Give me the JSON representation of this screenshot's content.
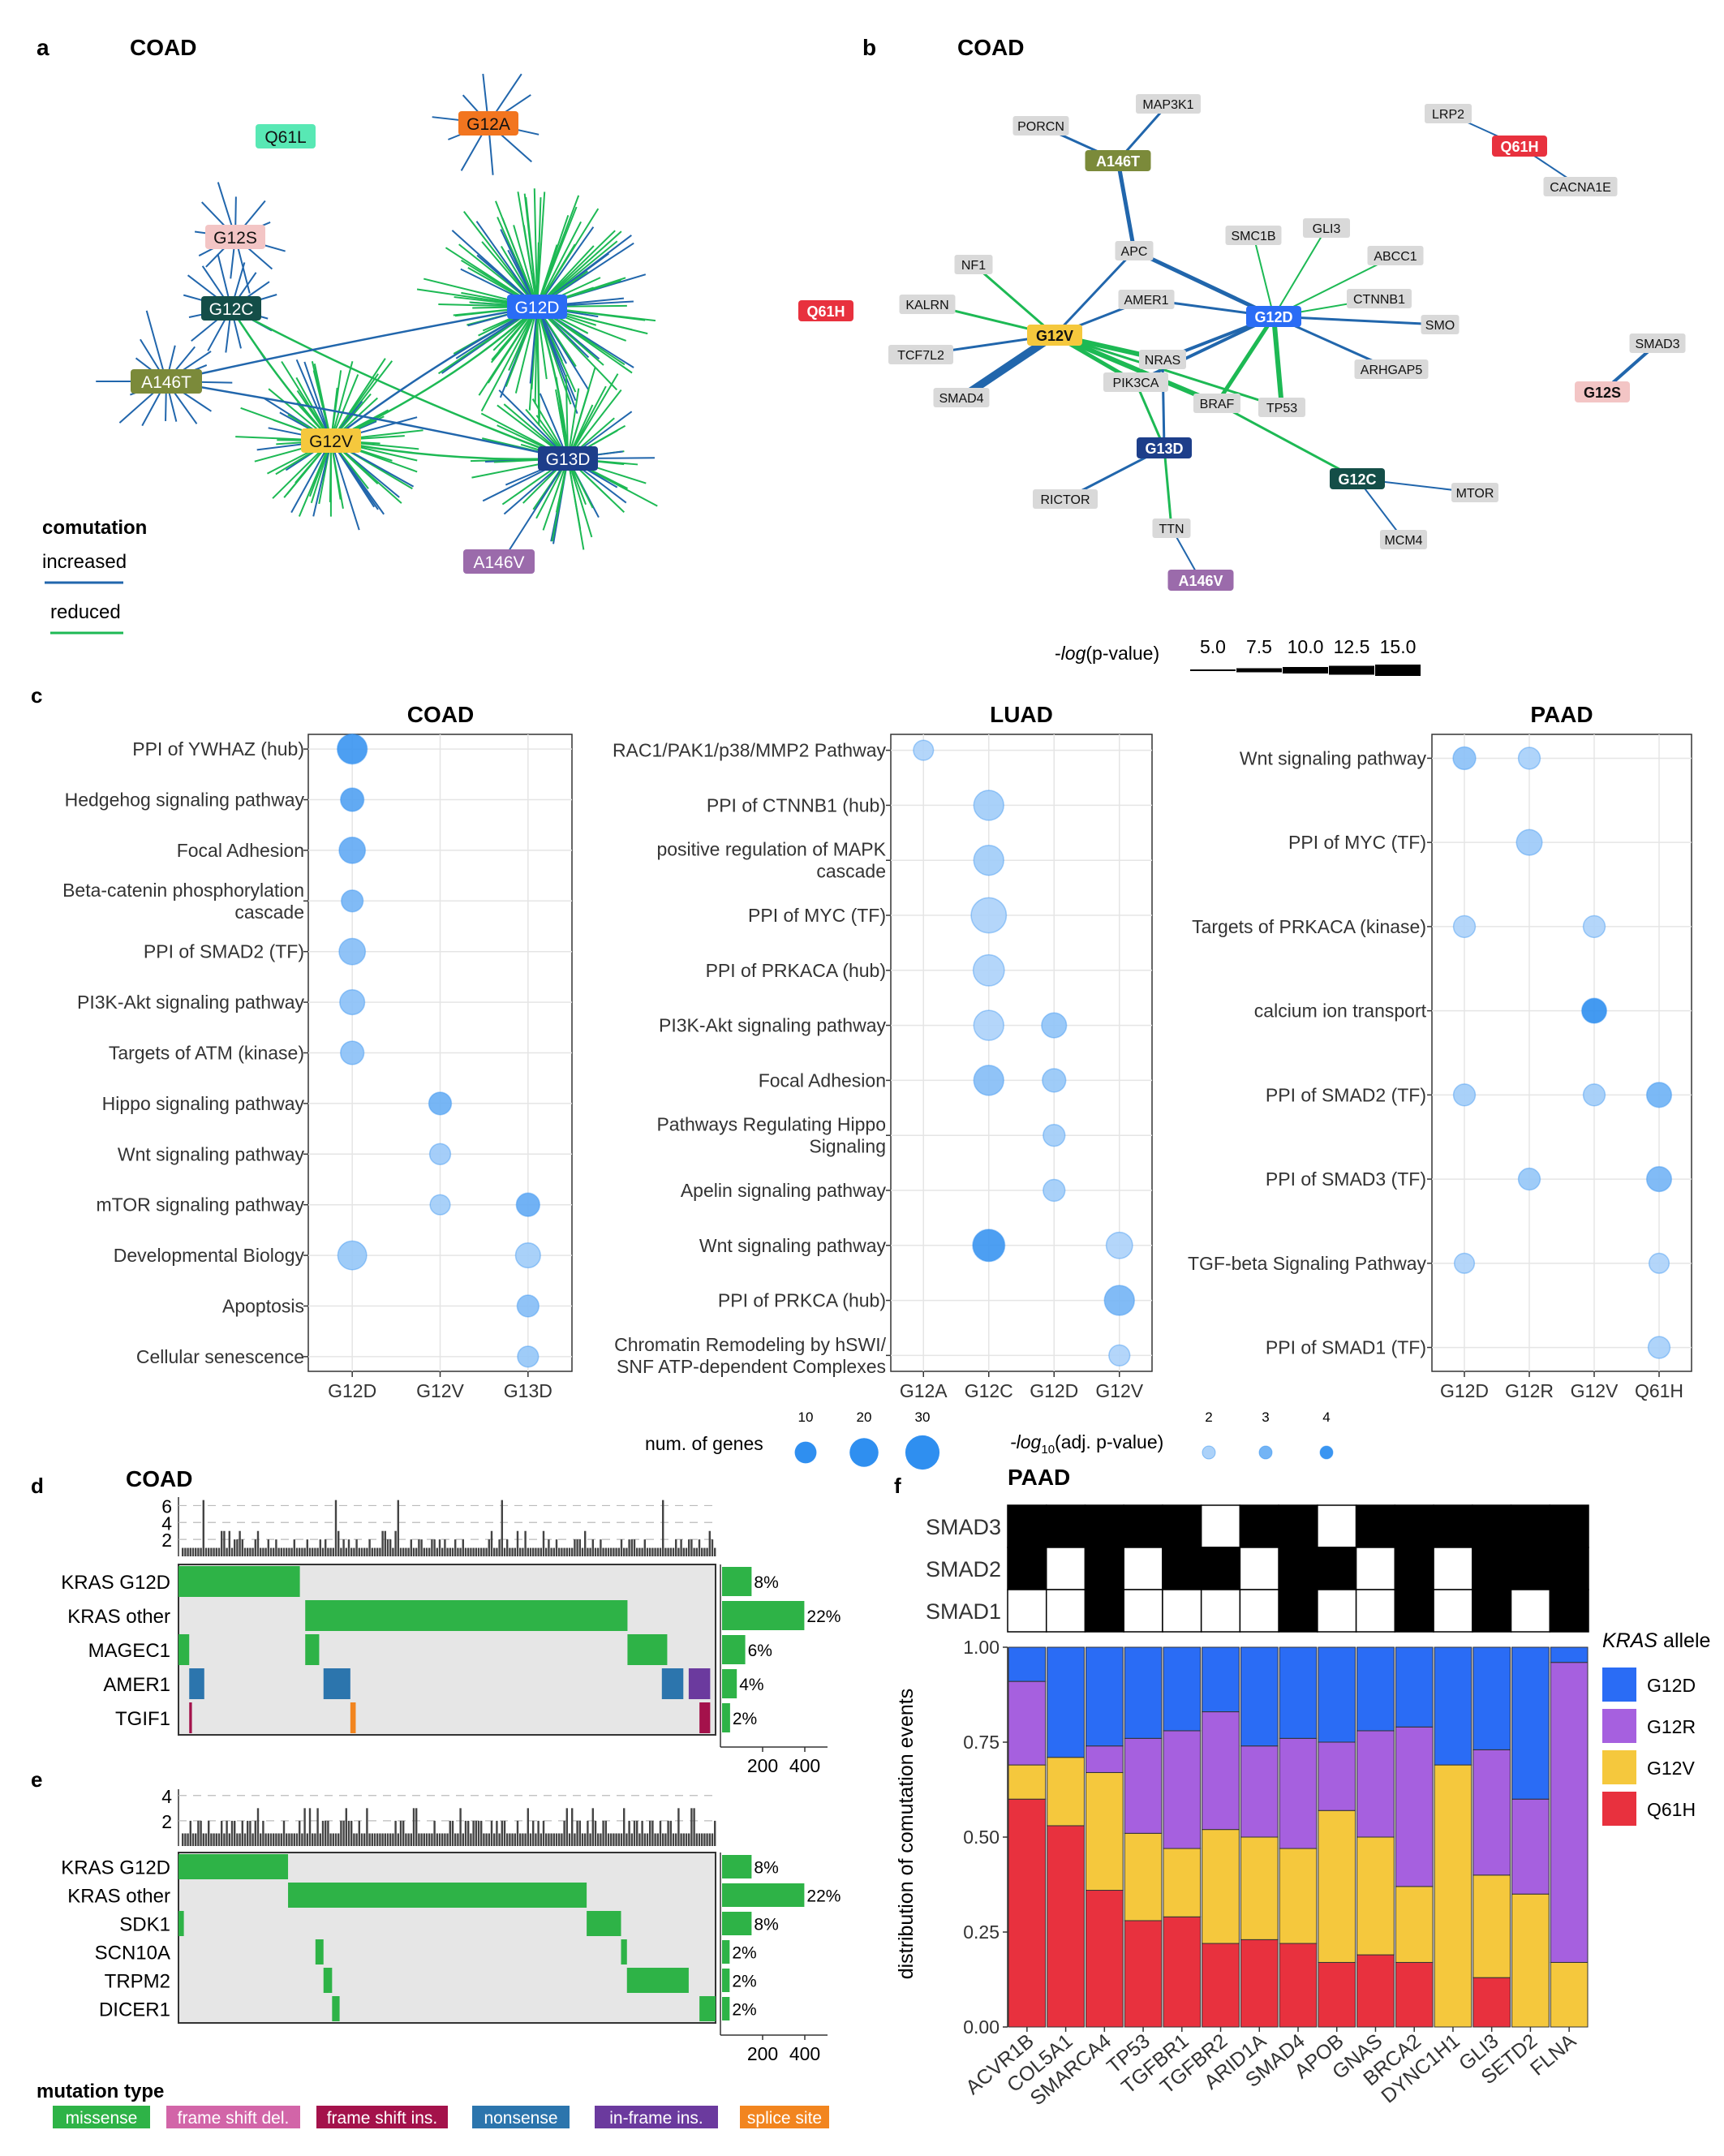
{
  "colors": {
    "increased": "#2166ac",
    "reduced": "#1db954",
    "G12D": "#2a6cf5",
    "G12V": "#f5c83d",
    "G13D": "#1d3e8a",
    "G12C": "#144e48",
    "A146T": "#7b8a3a",
    "G12S": "#f3c5c5",
    "G12A": "#f2751f",
    "Q61L": "#58e8b4",
    "A146V": "#9b6bab",
    "Q61H": "#e8313e",
    "G12R": "#a660df",
    "dot": "#2f8ff0",
    "panel_bg": "#ffffff",
    "oncobg": "#e6e6e6",
    "missense": "#2eb347",
    "frameshift_del": "#d265a8",
    "frameshift_ins": "#a4124b",
    "nonsense": "#2c75ad",
    "inframe_ins": "#6b3a9e",
    "splice": "#f2851f"
  },
  "panel_a": {
    "letter": "a",
    "title": "COAD",
    "legend_title": "comutation",
    "legend_increased": "increased",
    "legend_reduced": "reduced",
    "nodes": [
      "Q61L",
      "G12A",
      "G12S",
      "G12C",
      "G12D",
      "A146T",
      "G12V",
      "G13D",
      "A146V"
    ]
  },
  "panel_b": {
    "letter": "b",
    "title": "COAD",
    "alleles": [
      "A146T",
      "Q61H",
      "G12V",
      "G12D",
      "Q61H",
      "G13D",
      "G12C",
      "A146V",
      "G12S"
    ],
    "genes": [
      "MAP3K1",
      "PORCN",
      "LRP2",
      "CACNA1E",
      "APC",
      "SMC1B",
      "GLI3",
      "ABCC1",
      "NF1",
      "KALRN",
      "AMER1",
      "CTNNB1",
      "SMO",
      "TCF7L2",
      "NRAS",
      "ARHGAP5",
      "SMAD3",
      "SMAD4",
      "PIK3CA",
      "BRAF",
      "TP53",
      "RICTOR",
      "MTOR",
      "TTN",
      "MCM4"
    ],
    "width_legend_title_pre": "-",
    "width_legend_title_it": "log",
    "width_legend_title_post": "(p-value)",
    "width_legend_values": [
      "5.0",
      "7.5",
      "10.0",
      "12.5",
      "15.0"
    ]
  },
  "panel_c": {
    "letter": "c",
    "size_legend_title": "num. of genes",
    "size_legend_values": [
      "10",
      "20",
      "30"
    ],
    "color_legend_title_pre": "-log",
    "color_legend_title_sub": "10",
    "color_legend_title_post": "(adj. p-value)",
    "color_legend_values": [
      "2",
      "3",
      "4"
    ]
  },
  "chart_data": [
    {
      "type": "scatter",
      "title": "COAD",
      "x_categories": [
        "G12D",
        "G12V",
        "G13D"
      ],
      "y_categories": [
        "PPI of YWHAZ (hub)",
        "Hedgehog signaling pathway",
        "Focal Adhesion",
        "Beta-catenin phosphorylation cascade",
        "PPI of SMAD2 (TF)",
        "PI3K-Akt signaling pathway",
        "Targets of ATM (kinase)",
        "Hippo signaling pathway",
        "Wnt signaling pathway",
        "mTOR signaling pathway",
        "Developmental Biology",
        "Apoptosis",
        "Cellular senescence"
      ],
      "points": [
        {
          "x": "G12D",
          "y": "PPI of YWHAZ (hub)",
          "genes": 22,
          "neglog10p": 4.0
        },
        {
          "x": "G12D",
          "y": "Hedgehog signaling pathway",
          "genes": 12,
          "neglog10p": 3.6
        },
        {
          "x": "G12D",
          "y": "Focal Adhesion",
          "genes": 16,
          "neglog10p": 3.3
        },
        {
          "x": "G12D",
          "y": "Beta-catenin phosphorylation cascade",
          "genes": 10,
          "neglog10p": 3.0
        },
        {
          "x": "G12D",
          "y": "PPI of SMAD2 (TF)",
          "genes": 16,
          "neglog10p": 2.7
        },
        {
          "x": "G12D",
          "y": "PI3K-Akt signaling pathway",
          "genes": 14,
          "neglog10p": 2.6
        },
        {
          "x": "G12D",
          "y": "Targets of ATM (kinase)",
          "genes": 12,
          "neglog10p": 2.6
        },
        {
          "x": "G12V",
          "y": "Hippo signaling pathway",
          "genes": 11,
          "neglog10p": 3.2
        },
        {
          "x": "G12V",
          "y": "Wnt signaling pathway",
          "genes": 9,
          "neglog10p": 2.3
        },
        {
          "x": "G12V",
          "y": "mTOR signaling pathway",
          "genes": 8,
          "neglog10p": 2.2
        },
        {
          "x": "G13D",
          "y": "mTOR signaling pathway",
          "genes": 12,
          "neglog10p": 3.3
        },
        {
          "x": "G12D",
          "y": "Developmental Biology",
          "genes": 20,
          "neglog10p": 2.4
        },
        {
          "x": "G13D",
          "y": "Developmental Biology",
          "genes": 14,
          "neglog10p": 2.2
        },
        {
          "x": "G13D",
          "y": "Apoptosis",
          "genes": 10,
          "neglog10p": 2.7
        },
        {
          "x": "G13D",
          "y": "Cellular senescence",
          "genes": 9,
          "neglog10p": 2.4
        }
      ]
    },
    {
      "type": "scatter",
      "title": "LUAD",
      "x_categories": [
        "G12A",
        "G12C",
        "G12D",
        "G12V"
      ],
      "y_categories": [
        "RAC1/PAK1/p38/MMP2 Pathway",
        "PPI of CTNNB1 (hub)",
        "positive regulation of MAPK cascade",
        "PPI of MYC (TF)",
        "PPI of PRKACA (hub)",
        "PI3K-Akt signaling pathway",
        "Focal Adhesion",
        "Pathways Regulating Hippo Signaling",
        "Apelin signaling pathway",
        "Wnt signaling pathway",
        "PPI of PRKCA (hub)",
        "Chromatin Remodeling by hSWI/SNF ATP-dependent Complexes"
      ],
      "points": [
        {
          "x": "G12A",
          "y": "RAC1/PAK1/p38/MMP2 Pathway",
          "genes": 8,
          "neglog10p": 2.0
        },
        {
          "x": "G12C",
          "y": "PPI of CTNNB1 (hub)",
          "genes": 22,
          "neglog10p": 2.2
        },
        {
          "x": "G12C",
          "y": "positive regulation of MAPK cascade",
          "genes": 22,
          "neglog10p": 2.2
        },
        {
          "x": "G12C",
          "y": "PPI of MYC (TF)",
          "genes": 32,
          "neglog10p": 2.0
        },
        {
          "x": "G12C",
          "y": "PPI of PRKACA (hub)",
          "genes": 24,
          "neglog10p": 2.0
        },
        {
          "x": "G12C",
          "y": "PI3K-Akt signaling pathway",
          "genes": 22,
          "neglog10p": 2.0
        },
        {
          "x": "G12D",
          "y": "PI3K-Akt signaling pathway",
          "genes": 14,
          "neglog10p": 2.5
        },
        {
          "x": "G12C",
          "y": "Focal Adhesion",
          "genes": 22,
          "neglog10p": 2.7
        },
        {
          "x": "G12D",
          "y": "Focal Adhesion",
          "genes": 12,
          "neglog10p": 2.4
        },
        {
          "x": "G12D",
          "y": "Pathways Regulating Hippo Signaling",
          "genes": 10,
          "neglog10p": 2.2
        },
        {
          "x": "G12D",
          "y": "Apelin signaling pathway",
          "genes": 10,
          "neglog10p": 2.2
        },
        {
          "x": "G12C",
          "y": "Wnt signaling pathway",
          "genes": 26,
          "neglog10p": 4.0
        },
        {
          "x": "G12V",
          "y": "Wnt signaling pathway",
          "genes": 16,
          "neglog10p": 2.0
        },
        {
          "x": "G12V",
          "y": "PPI of PRKCA (hub)",
          "genes": 22,
          "neglog10p": 3.0
        },
        {
          "x": "G12V",
          "y": "Chromatin Remodeling by hSWI/SNF ATP-dependent Complexes",
          "genes": 9,
          "neglog10p": 2.0
        }
      ]
    },
    {
      "type": "scatter",
      "title": "PAAD",
      "x_categories": [
        "G12D",
        "G12R",
        "G12V",
        "Q61H"
      ],
      "y_categories": [
        "Wnt signaling pathway",
        "PPI of MYC (TF)",
        "Targets of PRKACA (kinase)",
        "calcium ion transport",
        "PPI of SMAD2 (TF)",
        "PPI of SMAD3 (TF)",
        "TGF-beta Signaling Pathway",
        "PPI of SMAD1 (TF)"
      ],
      "points": [
        {
          "x": "G12D",
          "y": "Wnt signaling pathway",
          "genes": 11,
          "neglog10p": 2.6
        },
        {
          "x": "G12R",
          "y": "Wnt signaling pathway",
          "genes": 10,
          "neglog10p": 2.1
        },
        {
          "x": "G12R",
          "y": "PPI of MYC (TF)",
          "genes": 15,
          "neglog10p": 2.3
        },
        {
          "x": "G12D",
          "y": "Targets of PRKACA (kinase)",
          "genes": 10,
          "neglog10p": 2.0
        },
        {
          "x": "G12V",
          "y": "Targets of PRKACA (kinase)",
          "genes": 10,
          "neglog10p": 2.0
        },
        {
          "x": "G12V",
          "y": "calcium ion transport",
          "genes": 14,
          "neglog10p": 4.2
        },
        {
          "x": "G12D",
          "y": "PPI of SMAD2 (TF)",
          "genes": 10,
          "neglog10p": 2.2
        },
        {
          "x": "G12V",
          "y": "PPI of SMAD2 (TF)",
          "genes": 10,
          "neglog10p": 2.2
        },
        {
          "x": "Q61H",
          "y": "PPI of SMAD2 (TF)",
          "genes": 14,
          "neglog10p": 3.1
        },
        {
          "x": "G12R",
          "y": "PPI of SMAD3 (TF)",
          "genes": 10,
          "neglog10p": 2.4
        },
        {
          "x": "Q61H",
          "y": "PPI of SMAD3 (TF)",
          "genes": 14,
          "neglog10p": 3.0
        },
        {
          "x": "G12D",
          "y": "TGF-beta Signaling Pathway",
          "genes": 8,
          "neglog10p": 2.0
        },
        {
          "x": "Q61H",
          "y": "TGF-beta Signaling Pathway",
          "genes": 8,
          "neglog10p": 2.0
        },
        {
          "x": "Q61H",
          "y": "PPI of SMAD1 (TF)",
          "genes": 10,
          "neglog10p": 2.1
        }
      ]
    },
    {
      "type": "table",
      "title": "COAD",
      "letter": "d",
      "top_ticks": [
        "2",
        "4",
        "6"
      ],
      "rows": [
        {
          "gene": "KRAS G12D",
          "pct": "8%",
          "value": 140
        },
        {
          "gene": "KRAS other",
          "pct": "22%",
          "value": 390
        },
        {
          "gene": "MAGEC1",
          "pct": "6%",
          "value": 110
        },
        {
          "gene": "AMER1",
          "pct": "4%",
          "value": 70
        },
        {
          "gene": "TGIF1",
          "pct": "2%",
          "value": 38
        }
      ],
      "bar_ticks": [
        "200",
        "400"
      ]
    },
    {
      "type": "table",
      "title": "",
      "letter": "e",
      "top_ticks": [
        "2",
        "4"
      ],
      "rows": [
        {
          "gene": "KRAS G12D",
          "pct": "8%",
          "value": 140
        },
        {
          "gene": "KRAS other",
          "pct": "22%",
          "value": 390
        },
        {
          "gene": "SDK1",
          "pct": "8%",
          "value": 140
        },
        {
          "gene": "SCN10A",
          "pct": "2%",
          "value": 36
        },
        {
          "gene": "TRPM2",
          "pct": "2%",
          "value": 36
        },
        {
          "gene": "DICER1",
          "pct": "2%",
          "value": 36
        }
      ],
      "bar_ticks": [
        "200",
        "400"
      ],
      "legend_title": "mutation type",
      "legend": [
        "missense",
        "frame shift del.",
        "frame shift ins.",
        "nonsense",
        "in-frame ins.",
        "splice site"
      ]
    },
    {
      "type": "bar",
      "title": "PAAD",
      "letter": "f",
      "ylabel": "distribution of comutation events",
      "legend_title_it": "KRAS",
      "legend_title_post": " allele",
      "y_ticks": [
        "0.00",
        "0.25",
        "0.50",
        "0.75",
        "1.00"
      ],
      "ylim": [
        0,
        1
      ],
      "categories": [
        "ACVR1B",
        "COL5A1",
        "SMARCA4",
        "TP53",
        "TGFBR1",
        "TGFBR2",
        "ARID1A",
        "SMAD4",
        "APOB",
        "GNAS",
        "BRCA2",
        "DYNC1H1",
        "GLI3",
        "SETD2",
        "FLNA"
      ],
      "series": [
        {
          "name": "Q61H",
          "values": [
            0.6,
            0.53,
            0.36,
            0.28,
            0.29,
            0.22,
            0.23,
            0.22,
            0.17,
            0.19,
            0.17,
            0.0,
            0.13,
            0.0,
            0.0
          ]
        },
        {
          "name": "G12V",
          "values": [
            0.09,
            0.18,
            0.31,
            0.23,
            0.18,
            0.3,
            0.27,
            0.25,
            0.4,
            0.31,
            0.2,
            0.69,
            0.27,
            0.35,
            0.17
          ]
        },
        {
          "name": "G12R",
          "values": [
            0.22,
            0.0,
            0.07,
            0.25,
            0.31,
            0.31,
            0.24,
            0.29,
            0.18,
            0.28,
            0.42,
            0.0,
            0.33,
            0.25,
            0.79
          ]
        },
        {
          "name": "G12D",
          "values": [
            0.09,
            0.29,
            0.26,
            0.24,
            0.22,
            0.17,
            0.26,
            0.24,
            0.25,
            0.22,
            0.21,
            0.31,
            0.27,
            0.4,
            0.04
          ]
        }
      ],
      "smad_rows": [
        "SMAD3",
        "SMAD2",
        "SMAD1"
      ],
      "smad_matrix": [
        [
          1,
          1,
          1,
          1,
          1,
          0,
          1,
          1,
          0,
          1,
          1,
          1,
          1,
          1,
          1
        ],
        [
          1,
          0,
          1,
          0,
          1,
          1,
          0,
          1,
          1,
          0,
          1,
          0,
          1,
          1,
          1
        ],
        [
          0,
          0,
          1,
          0,
          0,
          0,
          0,
          1,
          0,
          0,
          1,
          0,
          1,
          0,
          1
        ]
      ]
    }
  ]
}
